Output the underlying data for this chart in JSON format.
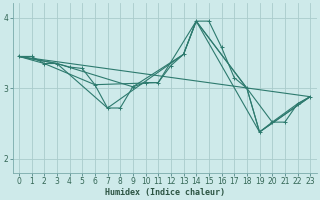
{
  "xlabel": "Humidex (Indice chaleur)",
  "background_color": "#ceeaea",
  "grid_color": "#aacccc",
  "line_color": "#2d7a6e",
  "xlim": [
    -0.5,
    23.5
  ],
  "ylim": [
    1.8,
    4.2
  ],
  "yticks": [
    2,
    3,
    4
  ],
  "xticks": [
    0,
    1,
    2,
    3,
    4,
    5,
    6,
    7,
    8,
    9,
    10,
    11,
    12,
    13,
    14,
    15,
    16,
    17,
    18,
    19,
    20,
    21,
    22,
    23
  ],
  "lines": [
    {
      "x": [
        0,
        1,
        2,
        3,
        4,
        5,
        6,
        7,
        8,
        9,
        10,
        11,
        12,
        13,
        14,
        15,
        16,
        17,
        18,
        19,
        20,
        21,
        22,
        23
      ],
      "y": [
        3.45,
        3.45,
        3.35,
        3.35,
        3.3,
        3.28,
        3.05,
        2.72,
        2.72,
        3.02,
        3.08,
        3.08,
        3.32,
        3.48,
        3.95,
        3.95,
        3.58,
        3.15,
        3.0,
        2.38,
        2.52,
        2.52,
        2.78,
        2.88
      ],
      "marker": true
    },
    {
      "x": [
        0,
        23
      ],
      "y": [
        3.45,
        2.88
      ],
      "marker": false
    },
    {
      "x": [
        0,
        3,
        9,
        13,
        14,
        18,
        19,
        23
      ],
      "y": [
        3.45,
        3.35,
        3.02,
        3.48,
        3.95,
        3.0,
        2.38,
        2.88
      ],
      "marker": false
    },
    {
      "x": [
        0,
        3,
        7,
        13,
        14,
        19,
        23
      ],
      "y": [
        3.45,
        3.35,
        2.72,
        3.48,
        3.95,
        2.38,
        2.88
      ],
      "marker": false
    },
    {
      "x": [
        0,
        2,
        6,
        11,
        14,
        18,
        20,
        22,
        23
      ],
      "y": [
        3.45,
        3.35,
        3.05,
        3.08,
        3.95,
        3.0,
        2.52,
        2.78,
        2.88
      ],
      "marker": false
    }
  ]
}
